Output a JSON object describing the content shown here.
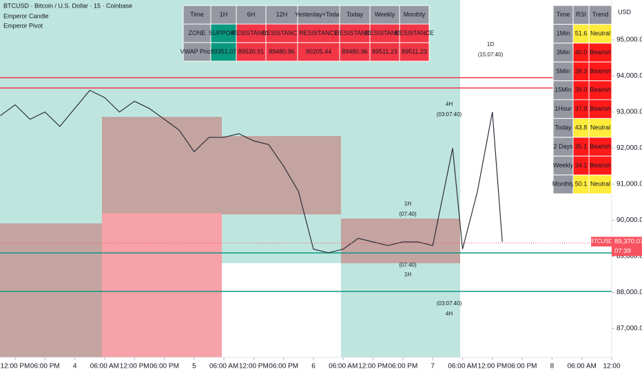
{
  "header": {
    "symbol": "BTCUSD · Bitcoin / U.S. Dollar · 15 · Coinbase",
    "indicators": [
      "Emperor Candle",
      "Emperor Pivot"
    ],
    "currency": "USD"
  },
  "chart_data": {
    "type": "line",
    "color": "#2a2e39",
    "x": [
      -3,
      0,
      3,
      6,
      9,
      12,
      15,
      18,
      21,
      24,
      27,
      30,
      33,
      36,
      39,
      42,
      45,
      48,
      51,
      54,
      57,
      60,
      63,
      66,
      69,
      72,
      75,
      78,
      81,
      84,
      88,
      90,
      93,
      96,
      98
    ],
    "values": [
      92900,
      93200,
      92800,
      93000,
      92600,
      93100,
      93600,
      93400,
      93000,
      93300,
      93100,
      92800,
      92500,
      91900,
      92300,
      92300,
      92400,
      92200,
      92100,
      91500,
      90800,
      89200,
      89100,
      89200,
      89500,
      89400,
      89300,
      89400,
      89400,
      89300,
      92000,
      89200,
      90800,
      93000,
      89400
    ],
    "xlim": [
      -3,
      120
    ],
    "xticks": [
      {
        "value": 0,
        "label": "12:00 PM"
      },
      {
        "value": 6,
        "label": "06:00 PM"
      },
      {
        "value": 12,
        "label": "4"
      },
      {
        "value": 18,
        "label": "06:00 AM"
      },
      {
        "value": 24,
        "label": "12:00 PM"
      },
      {
        "value": 30,
        "label": "06:00 PM"
      },
      {
        "value": 36,
        "label": "5"
      },
      {
        "value": 42,
        "label": "06:00 AM"
      },
      {
        "value": 48,
        "label": "12:00 PM"
      },
      {
        "value": 54,
        "label": "06:00 PM"
      },
      {
        "value": 60,
        "label": "6"
      },
      {
        "value": 66,
        "label": "06:00 AM"
      },
      {
        "value": 72,
        "label": "12:00 PM"
      },
      {
        "value": 78,
        "label": "06:00 PM"
      },
      {
        "value": 84,
        "label": "7"
      },
      {
        "value": 90,
        "label": "06:00 AM"
      },
      {
        "value": 96,
        "label": "12:00 PM"
      },
      {
        "value": 102,
        "label": "06:00 PM"
      },
      {
        "value": 108,
        "label": "8"
      },
      {
        "value": 114,
        "label": "06:00 AM"
      },
      {
        "value": 120,
        "label": "12:00"
      }
    ],
    "ylim": [
      86000,
      96100
    ],
    "yticks": [
      {
        "value": 87000,
        "label": "87,000.00"
      },
      {
        "value": 88000,
        "label": "88,000.00"
      },
      {
        "value": 89000,
        "label": "89,000.00"
      },
      {
        "value": 90000,
        "label": "90,000.00"
      },
      {
        "value": 91000,
        "label": "91,000.00"
      },
      {
        "value": 92000,
        "label": "92,000.00"
      },
      {
        "value": 93000,
        "label": "93,000.00"
      },
      {
        "value": 94000,
        "label": "94,000.00"
      },
      {
        "value": 95000,
        "label": "95,000.00"
      }
    ],
    "levels": [
      {
        "value": 93952,
        "color": "#f23645"
      },
      {
        "value": 93667,
        "color": "#f23645"
      },
      {
        "value": 89095,
        "color": "#089981"
      },
      {
        "value": 88029,
        "color": "#089981"
      }
    ],
    "last_price": {
      "value": 89370.07,
      "label": "89,370.07",
      "symbol": "BTCUSD",
      "countdown": "07:39",
      "color": "#f7525f"
    },
    "annotations": [
      "1D",
      "(15:07:40)",
      "4H",
      "(03:07:40)",
      "1H",
      "(07:40)",
      "(07:40)",
      "1H",
      "(03:07:40)",
      "4H"
    ]
  },
  "vwap_table": {
    "header": [
      "Time",
      "1H",
      "6H",
      "12H",
      "Yesterday+Today",
      "Today",
      "Weekly",
      "Monthly"
    ],
    "rows": [
      {
        "cells": [
          "ZONE",
          "SUPPORT",
          "RESISTANCE",
          "RESISTANCE",
          "RESISTANCE",
          "RESISTANCE",
          "RESISTANCE",
          "RESISTANCE"
        ],
        "colors": [
          "#9598a1",
          "#089981",
          "#f23645",
          "#f23645",
          "#f23645",
          "#f23645",
          "#f23645",
          "#f23645"
        ]
      },
      {
        "cells": [
          "VWAP Price",
          "89351.07",
          "89530.91",
          "89480.96",
          "90205.44",
          "89480.96",
          "89511.23",
          "89511.23"
        ],
        "colors": [
          "#9598a1",
          "#089981",
          "#f23645",
          "#f23645",
          "#f23645",
          "#f23645",
          "#f23645",
          "#f23645"
        ]
      }
    ]
  },
  "rsi_table": {
    "header": [
      "Time",
      "RSI",
      "Trend"
    ],
    "rows": [
      {
        "cells": [
          "1Min",
          "51.6",
          "Neutral"
        ],
        "color": "#ffeb3b"
      },
      {
        "cells": [
          "3Min",
          "40.0",
          "Bearish"
        ],
        "color": "#ff1a1a"
      },
      {
        "cells": [
          "5Min",
          "38.3",
          "Bearish"
        ],
        "color": "#ff1a1a"
      },
      {
        "cells": [
          "15Min",
          "39.0",
          "Bearish"
        ],
        "color": "#ff1a1a"
      },
      {
        "cells": [
          "1Hour",
          "37.9",
          "Bearish"
        ],
        "color": "#ff1a1a"
      },
      {
        "cells": [
          "Today",
          "43.8",
          "Neutral"
        ],
        "color": "#ffeb3b"
      },
      {
        "cells": [
          "2 Days",
          "35.1",
          "Bearish"
        ],
        "color": "#ff1a1a"
      },
      {
        "cells": [
          "Weekly",
          "34.1",
          "Bearish"
        ],
        "color": "#ff1a1a"
      },
      {
        "cells": [
          "Monthly",
          "50.1",
          "Neutral"
        ],
        "color": "#ffeb3b"
      }
    ]
  }
}
